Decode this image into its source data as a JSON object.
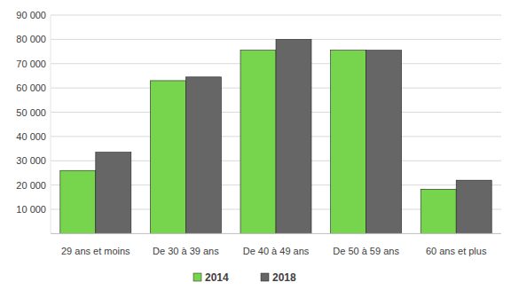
{
  "chart_data": {
    "type": "bar",
    "categories": [
      "29 ans et moins",
      "De 30 à 39 ans",
      "De 40 à 49 ans",
      "De 50 à 59 ans",
      "60 ans et plus"
    ],
    "series": [
      {
        "name": "2014",
        "color": "#77d44d",
        "values": [
          26000,
          63000,
          75500,
          75500,
          18300
        ]
      },
      {
        "name": "2018",
        "color": "#666666",
        "values": [
          33500,
          64500,
          80000,
          75500,
          22000
        ]
      }
    ],
    "ylim": [
      0,
      90000
    ],
    "yticks": [
      {
        "value": 10000,
        "label": "10 000"
      },
      {
        "value": 20000,
        "label": "20 000"
      },
      {
        "value": 30000,
        "label": "30 000"
      },
      {
        "value": 40000,
        "label": "40 000"
      },
      {
        "value": 50000,
        "label": "50 000"
      },
      {
        "value": 60000,
        "label": "60 000"
      },
      {
        "value": 70000,
        "label": "70 000"
      },
      {
        "value": 80000,
        "label": "80 000"
      },
      {
        "value": 90000,
        "label": "90 000"
      }
    ],
    "grid": true,
    "legend": "bottom"
  }
}
